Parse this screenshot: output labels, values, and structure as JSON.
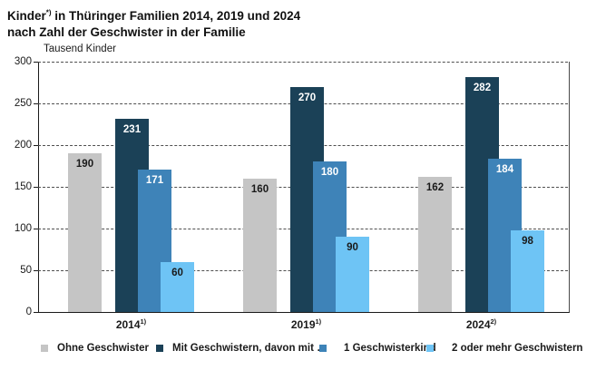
{
  "title": {
    "line1_prefix": "Kinder",
    "line1_sup": "*)",
    "line1_rest": " in Thüringer Familien 2014, 2019 und 2024",
    "line2": "nach Zahl der Geschwister in der Familie"
  },
  "chart_data": {
    "type": "bar",
    "title": "Kinder*) in Thüringer Familien 2014, 2019 und 2024 nach Zahl der Geschwister in der Familie",
    "ylabel": "Tausend Kinder",
    "xlabel": "",
    "ylim": [
      0,
      300
    ],
    "yticks": [
      0,
      50,
      100,
      150,
      200,
      250,
      300
    ],
    "grid": "horizontal-dashed",
    "legend_position": "bottom",
    "categories": [
      "2014",
      "2019",
      "2024"
    ],
    "category_footnotes": [
      "1)",
      "1)",
      "2)"
    ],
    "series": [
      {
        "name": "Ohne Geschwister",
        "color": "#c5c5c5",
        "label_color": "#1a1a1a",
        "values": [
          190,
          160,
          162
        ]
      },
      {
        "name": "Mit Geschwistern, davon mit …",
        "color": "#1b4157",
        "label_color": "#ffffff",
        "values": [
          231,
          270,
          282
        ]
      },
      {
        "name": "1 Geschwisterkind",
        "color": "#3e83b8",
        "label_color": "#ffffff",
        "values": [
          171,
          180,
          184
        ]
      },
      {
        "name": "2 oder mehr Geschwistern",
        "color": "#6ec4f5",
        "label_color": "#1a1a1a",
        "values": [
          60,
          90,
          98
        ]
      }
    ]
  }
}
